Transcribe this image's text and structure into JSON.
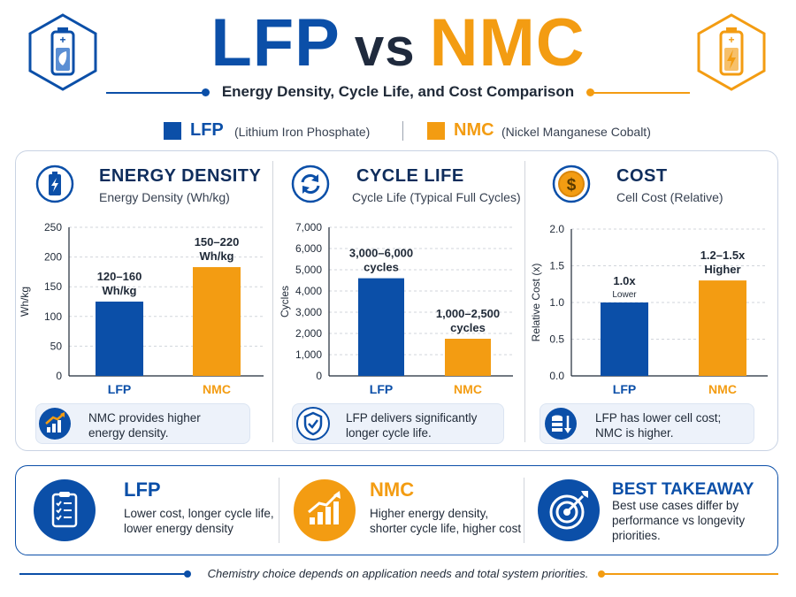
{
  "header": {
    "title_lfp": "LFP",
    "title_vs": "vs",
    "title_nmc": "NMC",
    "subtitle": "Energy Density, Cycle Life, and Cost Comparison"
  },
  "legend": {
    "lfp_label": "LFP",
    "lfp_desc": "(Lithium Iron Phosphate)",
    "nmc_label": "NMC",
    "nmc_desc": "(Nickel Manganese Cobalt)"
  },
  "colors": {
    "lfp": "#0b4fa8",
    "nmc": "#f39c12",
    "dark": "#0f2d5c"
  },
  "panels": [
    {
      "title": "ENERGY DENSITY",
      "subtitle": "Energy Density (Wh/kg)",
      "icon": "battery-bolt-icon",
      "note": "NMC provides higher energy density.",
      "note_icon": "rising-chart-icon"
    },
    {
      "title": "CYCLE LIFE",
      "subtitle": "Cycle Life (Typical Full Cycles)",
      "icon": "cycle-arrows-icon",
      "note": "LFP delivers significantly longer cycle life.",
      "note_icon": "shield-check-icon"
    },
    {
      "title": "COST",
      "subtitle": "Cell Cost (Relative)",
      "icon": "dollar-coin-icon",
      "note": "LFP has lower cell cost; NMC is higher.",
      "note_icon": "coins-down-icon"
    }
  ],
  "chart_data": [
    {
      "type": "bar",
      "title": "ENERGY DENSITY",
      "subtitle": "Energy Density (Wh/kg)",
      "categories": [
        "LFP",
        "NMC"
      ],
      "values": [
        125,
        183
      ],
      "data_labels": [
        [
          "120–160",
          "Wh/kg"
        ],
        [
          "150–220",
          "Wh/kg"
        ]
      ],
      "ylabel": "Wh/kg",
      "ylim": [
        0,
        250
      ],
      "yticks": [
        0,
        50,
        100,
        150,
        200,
        250
      ],
      "ytick_labels": [
        "0",
        "50",
        "100",
        "150",
        "200",
        "250"
      ],
      "colors": [
        "#0b4fa8",
        "#f39c12"
      ],
      "grid": true
    },
    {
      "type": "bar",
      "title": "CYCLE LIFE",
      "subtitle": "Cycle Life (Typical Full Cycles)",
      "categories": [
        "LFP",
        "NMC"
      ],
      "values": [
        4600,
        1750
      ],
      "data_labels": [
        [
          "3,000–6,000",
          "cycles"
        ],
        [
          "1,000–2,500",
          "cycles"
        ]
      ],
      "ylabel": "Cycles",
      "ylim": [
        0,
        7000
      ],
      "yticks": [
        0,
        1000,
        2000,
        3000,
        4000,
        5000,
        6000,
        7000
      ],
      "ytick_labels": [
        "0",
        "1,000",
        "2,000",
        "3,000",
        "4,000",
        "5,000",
        "6,000",
        "7,000"
      ],
      "colors": [
        "#0b4fa8",
        "#f39c12"
      ],
      "grid": true
    },
    {
      "type": "bar",
      "title": "COST",
      "subtitle": "Cell Cost (Relative)",
      "categories": [
        "LFP",
        "NMC"
      ],
      "values": [
        1.0,
        1.3
      ],
      "data_labels": [
        [
          "1.0x",
          "Lower"
        ],
        [
          "1.2–1.5x",
          "Higher"
        ]
      ],
      "ylabel": "Relative Cost (x)",
      "ylim": [
        0,
        2.0
      ],
      "yticks": [
        0,
        0.5,
        1.0,
        1.5,
        2.0
      ],
      "ytick_labels": [
        "0.0",
        "0.5",
        "1.0",
        "1.5",
        "2.0"
      ],
      "colors": [
        "#0b4fa8",
        "#f39c12"
      ],
      "grid": true
    }
  ],
  "bottom": {
    "lfp_title": "LFP",
    "lfp_text": "Lower cost, longer cycle life, lower energy density",
    "nmc_title": "NMC",
    "nmc_text": "Higher energy density, shorter cycle life, higher cost",
    "takeaway_title": "BEST TAKEAWAY",
    "takeaway_text": "Best use cases differ by performance vs longevity priorities."
  },
  "footer": "Chemistry choice depends on application needs and total system priorities."
}
